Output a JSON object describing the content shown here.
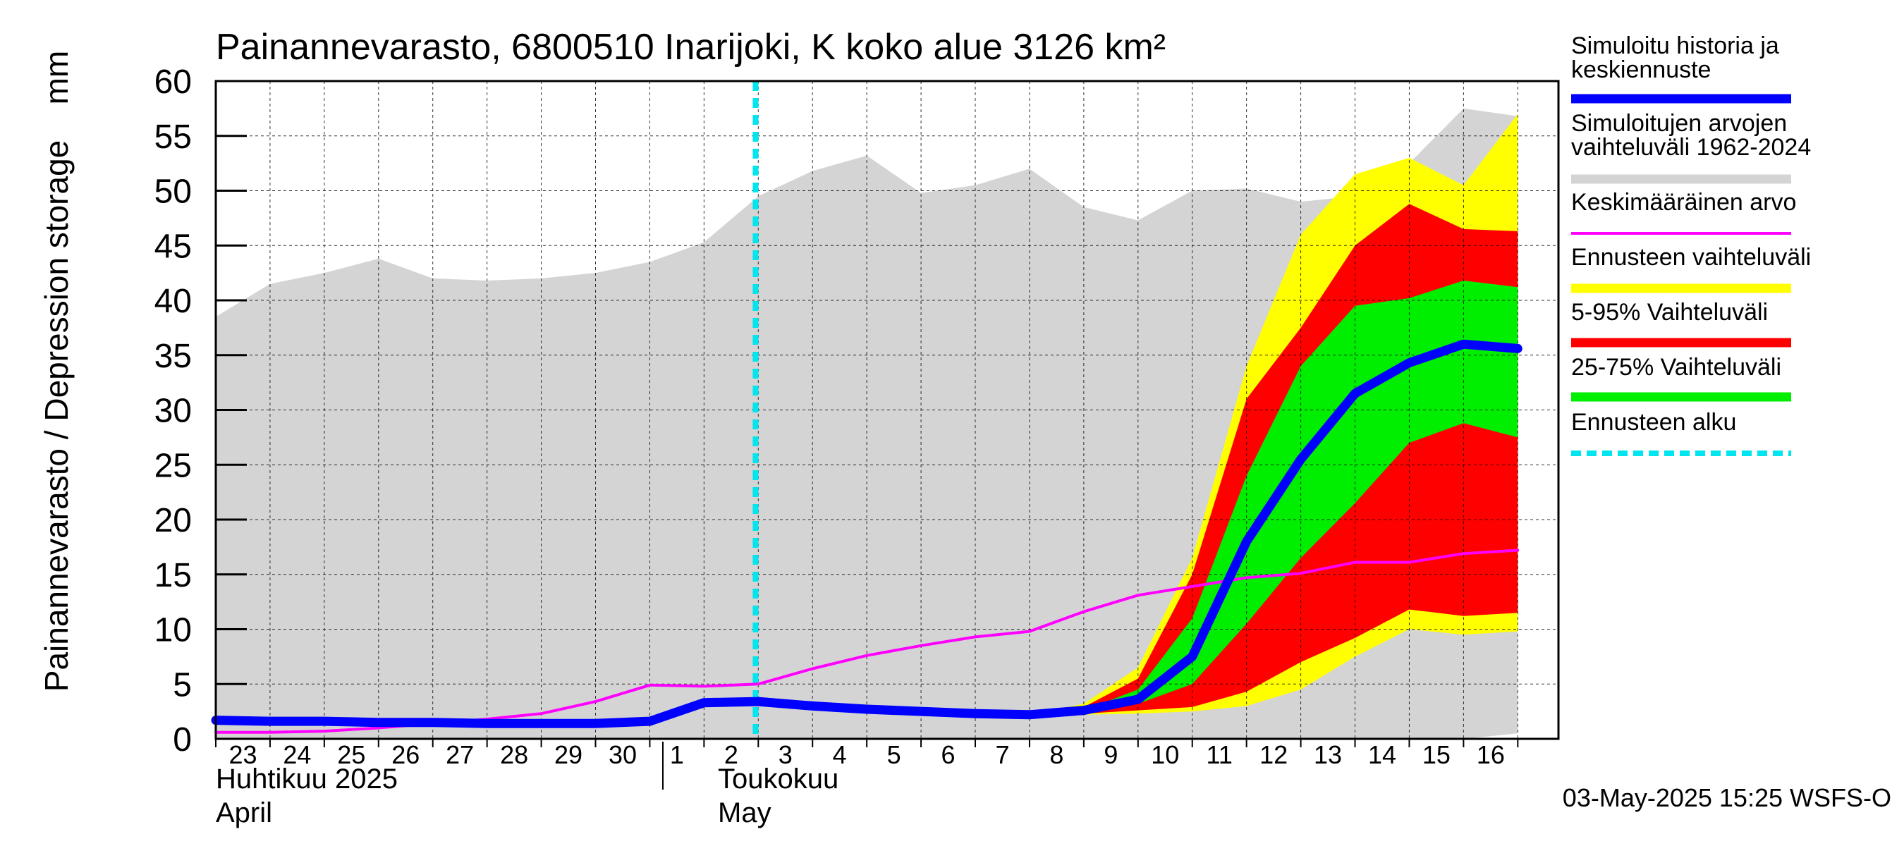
{
  "chart_data": {
    "type": "area",
    "title": "Painannevarasto, 6800510 Inarijoki, K koko alue 3126 km²",
    "ylabel": "Painannevarasto / Depression storage",
    "yunit": "mm",
    "ylim": [
      0,
      60
    ],
    "yticks": [
      "0",
      "5",
      "10",
      "15",
      "20",
      "25",
      "30",
      "35",
      "40",
      "45",
      "50",
      "55",
      "60"
    ],
    "xticks": [
      "23",
      "24",
      "25",
      "26",
      "27",
      "28",
      "29",
      "30",
      "1",
      "2",
      "3",
      "4",
      "5",
      "6",
      "7",
      "8",
      "9",
      "10",
      "11",
      "12",
      "13",
      "14",
      "15",
      "16"
    ],
    "x_dates": [
      "2025-04-23",
      "2025-04-24",
      "2025-04-25",
      "2025-04-26",
      "2025-04-27",
      "2025-04-28",
      "2025-04-29",
      "2025-04-30",
      "2025-05-01",
      "2025-05-02",
      "2025-05-03",
      "2025-05-04",
      "2025-05-05",
      "2025-05-06",
      "2025-05-07",
      "2025-05-08",
      "2025-05-09",
      "2025-05-10",
      "2025-05-11",
      "2025-05-12",
      "2025-05-13",
      "2025-05-14",
      "2025-05-15",
      "2025-05-16",
      "2025-05-17"
    ],
    "month_labels": [
      {
        "fi": "Huhtikuu  2025",
        "en": "April"
      },
      {
        "fi": "Toukokuu",
        "en": "May"
      }
    ],
    "forecast_start": "2025-05-03",
    "grid": true,
    "legend_position": "right",
    "series": [
      {
        "name": "Simuloitujen arvojen vaihteluväli 1962-2024",
        "kind": "band",
        "color": "#d4d4d4",
        "upper": [
          38.5,
          41.5,
          42.5,
          43.8,
          42,
          41.8,
          42,
          42.5,
          43.5,
          45.3,
          49.5,
          51.8,
          53.2,
          49.8,
          50.5,
          52,
          48.5,
          47.3,
          50,
          50.2,
          49,
          49.5,
          52.5,
          57.5,
          56.8
        ],
        "lower": [
          0,
          0,
          0,
          0,
          0,
          0,
          0,
          0,
          0,
          0,
          0,
          0,
          0,
          0,
          0,
          0,
          0,
          0,
          0,
          0,
          0,
          0,
          0,
          0,
          0.5
        ]
      },
      {
        "name": "Ennusteen vaihteluväli",
        "kind": "band",
        "color": "#ffff00",
        "x_start": "2025-05-03",
        "upper": [
          3.3,
          3.0,
          2.7,
          2.5,
          2.3,
          2.2,
          3.2,
          6.5,
          16.5,
          34,
          46,
          51.5,
          53,
          50.5,
          57
        ],
        "lower": [
          3.3,
          3.0,
          2.7,
          2.5,
          2.3,
          2.2,
          2.2,
          2.3,
          2.5,
          3.0,
          4.5,
          7.5,
          10.0,
          9.5,
          9.8
        ]
      },
      {
        "name": "5-95% Vaihteluväli",
        "kind": "band",
        "color": "#ff0000",
        "x_start": "2025-05-03",
        "upper": [
          3.3,
          3.0,
          2.7,
          2.5,
          2.3,
          2.2,
          2.9,
          5.5,
          15,
          31,
          37.5,
          45,
          48.8,
          46.5,
          46.3
        ],
        "lower": [
          3.3,
          3.0,
          2.7,
          2.5,
          2.3,
          2.2,
          2.3,
          2.6,
          2.9,
          4.3,
          7,
          9.2,
          11.8,
          11.2,
          11.5
        ]
      },
      {
        "name": "25-75% Vaihteluväli",
        "kind": "band",
        "color": "#00ee00",
        "x_start": "2025-05-03",
        "upper": [
          3.3,
          3.0,
          2.7,
          2.5,
          2.3,
          2.2,
          2.6,
          4.5,
          11,
          24,
          34,
          39.5,
          40.2,
          41.8,
          41.2
        ],
        "lower": [
          3.3,
          3.0,
          2.7,
          2.5,
          2.3,
          2.2,
          2.4,
          3.2,
          5,
          10.5,
          16.5,
          21.5,
          27,
          28.8,
          27.5
        ]
      },
      {
        "name": "Keskimääräinen arvo",
        "kind": "line",
        "color": "#ff00ff",
        "values": [
          0.6,
          0.6,
          0.7,
          1.0,
          1.4,
          1.8,
          2.3,
          3.4,
          4.9,
          4.8,
          5.0,
          6.4,
          7.6,
          8.5,
          9.3,
          9.8,
          11.6,
          13.1,
          13.9,
          14.7,
          15.1,
          16.1,
          16.1,
          16.9,
          17.2
        ]
      },
      {
        "name": "Simuloitu historia ja keskiennuste",
        "kind": "line",
        "color": "#0000ff",
        "values": [
          1.7,
          1.6,
          1.6,
          1.5,
          1.5,
          1.4,
          1.4,
          1.4,
          1.6,
          3.3,
          3.4,
          3.0,
          2.7,
          2.5,
          2.3,
          2.2,
          2.6,
          3.6,
          7.5,
          18,
          25.5,
          31.5,
          34.3,
          36,
          35.6
        ]
      }
    ],
    "legend": [
      {
        "label": "Simuloitu historia ja keskiennuste",
        "color": "#0000ff",
        "style": "thick"
      },
      {
        "label": "Simuloitujen arvojen vaihteluväli 1962-2024",
        "color": "#d4d4d4",
        "style": "thick"
      },
      {
        "label": "Keskimääräinen arvo",
        "color": "#ff00ff",
        "style": "thin"
      },
      {
        "label": "Ennusteen vaihteluväli",
        "color": "#ffff00",
        "style": "thick"
      },
      {
        "label": "5-95% Vaihteluväli",
        "color": "#ff0000",
        "style": "thick"
      },
      {
        "label": "25-75% Vaihteluväli",
        "color": "#00ee00",
        "style": "thick"
      },
      {
        "label": "Ennusteen alku",
        "color": "#00e5ee",
        "style": "dashed"
      }
    ]
  },
  "footer": {
    "timestamp": "03-May-2025 15:25 WSFS-O"
  }
}
